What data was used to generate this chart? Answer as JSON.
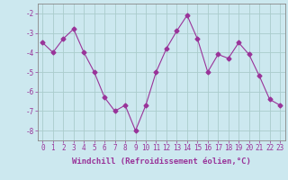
{
  "x": [
    0,
    1,
    2,
    3,
    4,
    5,
    6,
    7,
    8,
    9,
    10,
    11,
    12,
    13,
    14,
    15,
    16,
    17,
    18,
    19,
    20,
    21,
    22,
    23
  ],
  "y": [
    -3.5,
    -4.0,
    -3.3,
    -2.8,
    -4.0,
    -5.0,
    -6.3,
    -7.0,
    -6.7,
    -8.0,
    -6.7,
    -5.0,
    -3.8,
    -2.9,
    -2.1,
    -3.3,
    -5.0,
    -4.1,
    -4.3,
    -3.5,
    -4.1,
    -5.2,
    -6.4,
    -6.7
  ],
  "line_color": "#993399",
  "marker": "D",
  "marker_size": 2.5,
  "background_color": "#cce8ef",
  "grid_color": "#aacccc",
  "xlabel": "Windchill (Refroidissement éolien,°C)",
  "xlabel_fontsize": 6.5,
  "tick_fontsize": 5.5,
  "ylim": [
    -8.5,
    -1.5
  ],
  "xlim": [
    -0.5,
    23.5
  ],
  "yticks": [
    -8,
    -7,
    -6,
    -5,
    -4,
    -3,
    -2
  ],
  "xticks": [
    0,
    1,
    2,
    3,
    4,
    5,
    6,
    7,
    8,
    9,
    10,
    11,
    12,
    13,
    14,
    15,
    16,
    17,
    18,
    19,
    20,
    21,
    22,
    23
  ]
}
